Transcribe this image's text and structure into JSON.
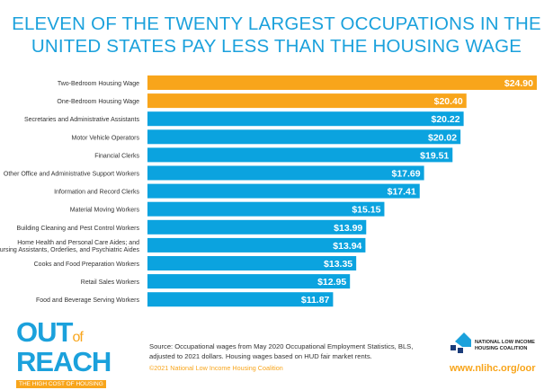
{
  "chart_data": {
    "type": "bar",
    "orientation": "horizontal",
    "title": "ELEVEN OF THE TWENTY LARGEST OCCUPATIONS IN THE UNITED STATES PAY LESS THAN THE HOUSING WAGE",
    "categories": [
      "Two-Bedroom Housing Wage",
      "One-Bedroom Housing Wage",
      "Secretaries and Administrative Assistants",
      "Motor Vehicle Operators",
      "Financial Clerks",
      "Other Office and Administrative Support Workers",
      "Information and Record Clerks",
      "Material Moving Workers",
      "Building Cleaning and Pest Control Workers",
      "Home Health and Personal Care Aides; and|Nursing Assistants, Orderlies, and Psychiatric Aides",
      "Cooks and Food Preparation Workers",
      "Retail Sales Workers",
      "Food and Beverage Serving Workers"
    ],
    "values": [
      24.9,
      20.4,
      20.22,
      20.02,
      19.51,
      17.69,
      17.41,
      15.15,
      13.99,
      13.94,
      13.35,
      12.95,
      11.87
    ],
    "value_labels": [
      "$24.90",
      "$20.40",
      "$20.22",
      "$20.02",
      "$19.51",
      "$17.69",
      "$17.41",
      "$15.15",
      "$13.99",
      "$13.94",
      "$13.35",
      "$12.95",
      "$11.87"
    ],
    "highlight_count": 2,
    "colors": {
      "housing_wage": "#f8a51b",
      "occupation": "#0ba3df",
      "title": "#1ba1dc"
    },
    "xlim": [
      0,
      24.9
    ],
    "grid": false
  },
  "footer": {
    "source": "Source: Occupational wages from May 2020 Occupational Employment Statistics, BLS, adjusted to 2021 dollars. Housing wages based on HUD fair market rents.",
    "copyright": "©2021 National Low Income Housing Coalition",
    "logo": {
      "out": "OUT",
      "of": "of",
      "reach": "REACH",
      "tagline": "THE HIGH COST OF HOUSING"
    },
    "org_name_1": "NATIONAL LOW INCOME",
    "org_name_2": "HOUSING COALITION",
    "url": "www.nlihc.org/oor"
  }
}
